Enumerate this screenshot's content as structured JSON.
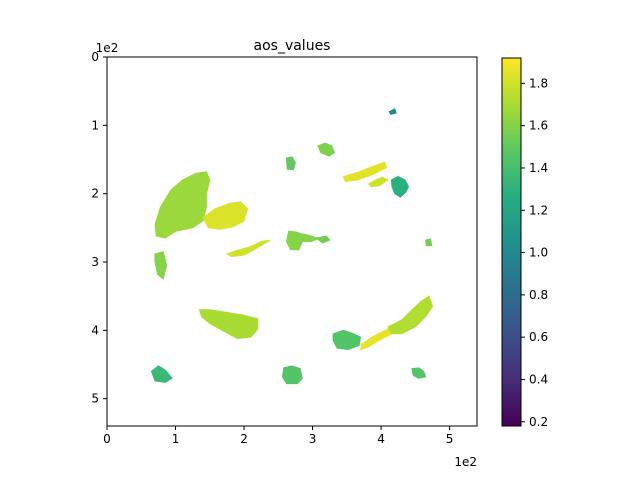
{
  "chart_data": {
    "type": "heatmap",
    "title": "aos_values",
    "x_axis": {
      "range": [
        0,
        540
      ],
      "ticks": [
        0,
        100,
        200,
        300,
        400,
        500
      ],
      "tick_labels": [
        "0",
        "1",
        "2",
        "3",
        "4",
        "5"
      ],
      "offset_label": "1e2"
    },
    "y_axis": {
      "range": [
        0,
        540
      ],
      "inverted": true,
      "ticks": [
        0,
        100,
        200,
        300,
        400,
        500
      ],
      "tick_labels": [
        "0",
        "1",
        "2",
        "3",
        "4",
        "5"
      ],
      "offset_label": "1e2"
    },
    "colorbar": {
      "colormap": "viridis",
      "range": [
        0.18,
        1.92
      ],
      "ticks": [
        0.2,
        0.4,
        0.6,
        0.8,
        1.0,
        1.2,
        1.4,
        1.6,
        1.8
      ],
      "tick_labels": [
        "0.2",
        "0.4",
        "0.6",
        "0.8",
        "1.0",
        "1.2",
        "1.4",
        "1.6",
        "1.8"
      ]
    },
    "grid": false,
    "patches": [
      {
        "value": 1.66,
        "points": [
          [
            70,
            245
          ],
          [
            78,
            220
          ],
          [
            93,
            195
          ],
          [
            110,
            180
          ],
          [
            130,
            170
          ],
          [
            145,
            168
          ],
          [
            150,
            180
          ],
          [
            145,
            200
          ],
          [
            145,
            220
          ],
          [
            140,
            240
          ],
          [
            125,
            250
          ],
          [
            100,
            255
          ],
          [
            85,
            265
          ],
          [
            72,
            262
          ]
        ]
      },
      {
        "value": 1.83,
        "points": [
          [
            140,
            235
          ],
          [
            158,
            222
          ],
          [
            180,
            214
          ],
          [
            195,
            212
          ],
          [
            205,
            222
          ],
          [
            200,
            240
          ],
          [
            185,
            248
          ],
          [
            165,
            252
          ],
          [
            148,
            250
          ]
        ]
      },
      {
        "value": 1.8,
        "points": [
          [
            175,
            288
          ],
          [
            190,
            283
          ],
          [
            208,
            278
          ],
          [
            225,
            270
          ],
          [
            238,
            268
          ],
          [
            215,
            282
          ],
          [
            200,
            290
          ],
          [
            182,
            292
          ]
        ]
      },
      {
        "value": 1.6,
        "points": [
          [
            70,
            288
          ],
          [
            82,
            285
          ],
          [
            87,
            305
          ],
          [
            82,
            325
          ],
          [
            74,
            318
          ],
          [
            70,
            300
          ]
        ]
      },
      {
        "value": 1.7,
        "points": [
          [
            135,
            370
          ],
          [
            150,
            370
          ],
          [
            170,
            373
          ],
          [
            195,
            377
          ],
          [
            220,
            383
          ],
          [
            220,
            398
          ],
          [
            210,
            410
          ],
          [
            190,
            412
          ],
          [
            168,
            400
          ],
          [
            150,
            390
          ],
          [
            138,
            380
          ]
        ]
      },
      {
        "value": 1.45,
        "points": [
          [
            258,
            455
          ],
          [
            270,
            452
          ],
          [
            282,
            456
          ],
          [
            285,
            470
          ],
          [
            278,
            478
          ],
          [
            262,
            478
          ],
          [
            256,
            468
          ]
        ]
      },
      {
        "value": 1.35,
        "points": [
          [
            65,
            460
          ],
          [
            75,
            452
          ],
          [
            85,
            458
          ],
          [
            95,
            470
          ],
          [
            85,
            476
          ],
          [
            70,
            474
          ]
        ]
      },
      {
        "value": 1.5,
        "points": [
          [
            262,
            148
          ],
          [
            270,
            146
          ],
          [
            275,
            155
          ],
          [
            272,
            165
          ],
          [
            263,
            164
          ]
        ]
      },
      {
        "value": 1.58,
        "points": [
          [
            308,
            130
          ],
          [
            318,
            126
          ],
          [
            328,
            130
          ],
          [
            332,
            140
          ],
          [
            324,
            145
          ],
          [
            312,
            140
          ]
        ]
      },
      {
        "value": 1.85,
        "points": [
          [
            345,
            175
          ],
          [
            368,
            168
          ],
          [
            388,
            160
          ],
          [
            405,
            154
          ],
          [
            408,
            162
          ],
          [
            388,
            172
          ],
          [
            365,
            180
          ],
          [
            348,
            182
          ]
        ]
      },
      {
        "value": 1.8,
        "points": [
          [
            382,
            186
          ],
          [
            392,
            180
          ],
          [
            402,
            176
          ],
          [
            410,
            180
          ],
          [
            398,
            188
          ],
          [
            386,
            190
          ]
        ]
      },
      {
        "value": 1.28,
        "points": [
          [
            415,
            180
          ],
          [
            425,
            175
          ],
          [
            435,
            180
          ],
          [
            440,
            190
          ],
          [
            436,
            198
          ],
          [
            428,
            205
          ],
          [
            420,
            200
          ],
          [
            416,
            190
          ]
        ]
      },
      {
        "value": 1.6,
        "points": [
          [
            265,
            255
          ],
          [
            275,
            256
          ],
          [
            282,
            258
          ],
          [
            298,
            262
          ],
          [
            308,
            266
          ],
          [
            298,
            270
          ],
          [
            285,
            270
          ],
          [
            280,
            282
          ],
          [
            268,
            282
          ],
          [
            262,
            270
          ]
        ]
      },
      {
        "value": 1.55,
        "points": [
          [
            305,
            265
          ],
          [
            320,
            262
          ],
          [
            325,
            268
          ],
          [
            315,
            272
          ]
        ]
      },
      {
        "value": 1.45,
        "points": [
          [
            330,
            405
          ],
          [
            345,
            400
          ],
          [
            360,
            405
          ],
          [
            370,
            410
          ],
          [
            368,
            422
          ],
          [
            352,
            428
          ],
          [
            336,
            426
          ],
          [
            330,
            415
          ]
        ]
      },
      {
        "value": 1.86,
        "points": [
          [
            372,
            420
          ],
          [
            390,
            408
          ],
          [
            410,
            398
          ],
          [
            428,
            388
          ],
          [
            438,
            380
          ],
          [
            436,
            392
          ],
          [
            418,
            404
          ],
          [
            398,
            414
          ],
          [
            380,
            425
          ],
          [
            370,
            428
          ]
        ]
      },
      {
        "value": 1.72,
        "points": [
          [
            410,
            395
          ],
          [
            430,
            385
          ],
          [
            445,
            370
          ],
          [
            458,
            358
          ],
          [
            470,
            350
          ],
          [
            475,
            365
          ],
          [
            465,
            380
          ],
          [
            450,
            395
          ],
          [
            430,
            405
          ],
          [
            415,
            405
          ]
        ]
      },
      {
        "value": 1.45,
        "points": [
          [
            445,
            456
          ],
          [
            455,
            455
          ],
          [
            462,
            460
          ],
          [
            465,
            468
          ],
          [
            455,
            470
          ],
          [
            447,
            466
          ]
        ]
      },
      {
        "value": 1.55,
        "points": [
          [
            465,
            268
          ],
          [
            472,
            266
          ],
          [
            474,
            276
          ],
          [
            466,
            276
          ]
        ]
      },
      {
        "value": 1.0,
        "points": [
          [
            412,
            80
          ],
          [
            420,
            76
          ],
          [
            422,
            82
          ],
          [
            414,
            84
          ]
        ]
      }
    ]
  }
}
